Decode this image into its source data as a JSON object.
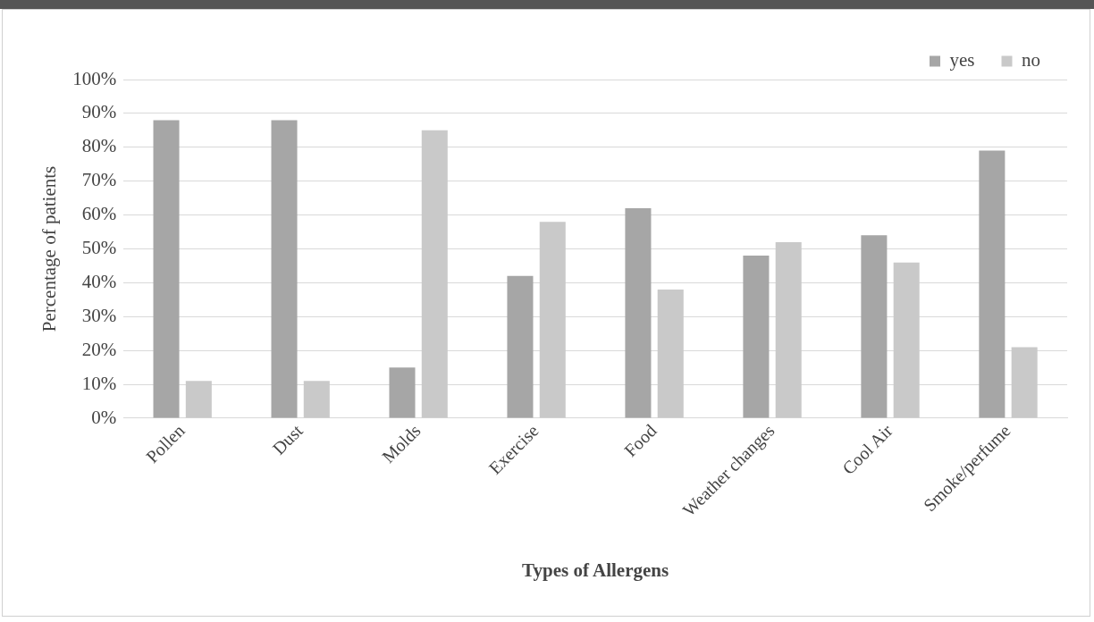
{
  "chart_data": {
    "type": "bar",
    "xlabel": "Types of Allergens",
    "ylabel": "Percentage of patients",
    "categories": [
      "Pollen",
      "Dust",
      "Molds",
      "Exercise",
      "Food",
      "Weather changes",
      "Cool Air",
      "Smoke/perfume"
    ],
    "series": [
      {
        "name": "yes",
        "color": "#a6a6a6",
        "values": [
          88,
          88,
          15,
          42,
          62,
          48,
          54,
          79
        ]
      },
      {
        "name": "no",
        "color": "#c9c9c9",
        "values": [
          11,
          11,
          85,
          58,
          38,
          52,
          46,
          21
        ]
      }
    ],
    "ylim": [
      0,
      100
    ],
    "yticks": [
      {
        "value": 0,
        "label": "0%"
      },
      {
        "value": 10,
        "label": "10%"
      },
      {
        "value": 20,
        "label": "20%"
      },
      {
        "value": 30,
        "label": "30%"
      },
      {
        "value": 40,
        "label": "40%"
      },
      {
        "value": 50,
        "label": "50%"
      },
      {
        "value": 60,
        "label": "60%"
      },
      {
        "value": 70,
        "label": "70%"
      },
      {
        "value": 80,
        "label": "80%"
      },
      {
        "value": 90,
        "label": "90%"
      },
      {
        "value": 100,
        "label": "100%"
      }
    ],
    "grid": "y",
    "legend": "top right"
  }
}
